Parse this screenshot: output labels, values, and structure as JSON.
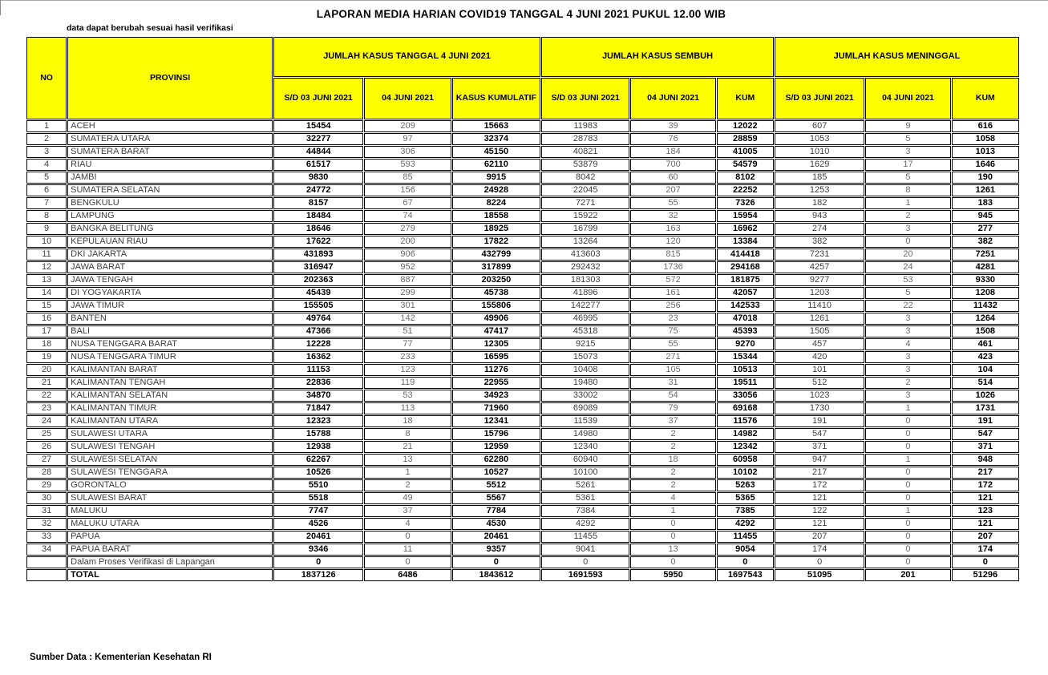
{
  "page": {
    "title": "LAPORAN MEDIA HARIAN COVID19 TANGGAL 4 JUNI 2021 PUKUL 12.00 WIB",
    "note": "data dapat berubah sesuai hasil verifikasi",
    "source": "Sumber Data : Kementerian Kesehatan RI"
  },
  "colors": {
    "header_bg": "#FFFF00",
    "border": "#000000",
    "bold_value": "#000000",
    "muted_value": "#6a6a6a"
  },
  "table": {
    "headers": {
      "no": "NO",
      "provinsi": "PROVINSI",
      "group_kasus": "JUMLAH KASUS TANGGAL 4 JUNI 2021",
      "group_sembuh": "JUMLAH KASUS SEMBUH",
      "group_meninggal": "JUMLAH KASUS MENINGGAL",
      "sub": [
        "S/D 03 JUNI 2021",
        "04 JUNI 2021",
        "KASUS KUMULATIF",
        "S/D 03 JUNI 2021",
        "04 JUNI 2021",
        "KUM",
        "S/D 03 JUNI 2021",
        "04 JUNI 2021",
        "KUM"
      ]
    },
    "rows": [
      [
        "1",
        "ACEH",
        "15454",
        "209",
        "15663",
        "11983",
        "39",
        "12022",
        "607",
        "9",
        "616"
      ],
      [
        "2",
        "SUMATERA UTARA",
        "32277",
        "97",
        "32374",
        "28783",
        "76",
        "28859",
        "1053",
        "5",
        "1058"
      ],
      [
        "3",
        "SUMATERA BARAT",
        "44844",
        "306",
        "45150",
        "40821",
        "184",
        "41005",
        "1010",
        "3",
        "1013"
      ],
      [
        "4",
        "RIAU",
        "61517",
        "593",
        "62110",
        "53879",
        "700",
        "54579",
        "1629",
        "17",
        "1646"
      ],
      [
        "5",
        "JAMBI",
        "9830",
        "85",
        "9915",
        "8042",
        "60",
        "8102",
        "185",
        "5",
        "190"
      ],
      [
        "6",
        "SUMATERA SELATAN",
        "24772",
        "156",
        "24928",
        "22045",
        "207",
        "22252",
        "1253",
        "8",
        "1261"
      ],
      [
        "7",
        "BENGKULU",
        "8157",
        "67",
        "8224",
        "7271",
        "55",
        "7326",
        "182",
        "1",
        "183"
      ],
      [
        "8",
        "LAMPUNG",
        "18484",
        "74",
        "18558",
        "15922",
        "32",
        "15954",
        "943",
        "2",
        "945"
      ],
      [
        "9",
        "BANGKA BELITUNG",
        "18646",
        "279",
        "18925",
        "16799",
        "163",
        "16962",
        "274",
        "3",
        "277"
      ],
      [
        "10",
        "KEPULAUAN RIAU",
        "17622",
        "200",
        "17822",
        "13264",
        "120",
        "13384",
        "382",
        "0",
        "382"
      ],
      [
        "11",
        "DKI JAKARTA",
        "431893",
        "906",
        "432799",
        "413603",
        "815",
        "414418",
        "7231",
        "20",
        "7251"
      ],
      [
        "12",
        "JAWA BARAT",
        "316947",
        "952",
        "317899",
        "292432",
        "1736",
        "294168",
        "4257",
        "24",
        "4281"
      ],
      [
        "13",
        "JAWA TENGAH",
        "202363",
        "887",
        "203250",
        "181303",
        "572",
        "181875",
        "9277",
        "53",
        "9330"
      ],
      [
        "14",
        "DI YOGYAKARTA",
        "45439",
        "299",
        "45738",
        "41896",
        "161",
        "42057",
        "1203",
        "5",
        "1208"
      ],
      [
        "15",
        "JAWA TIMUR",
        "155505",
        "301",
        "155806",
        "142277",
        "256",
        "142533",
        "11410",
        "22",
        "11432"
      ],
      [
        "16",
        "BANTEN",
        "49764",
        "142",
        "49906",
        "46995",
        "23",
        "47018",
        "1261",
        "3",
        "1264"
      ],
      [
        "17",
        "BALI",
        "47366",
        "51",
        "47417",
        "45318",
        "75",
        "45393",
        "1505",
        "3",
        "1508"
      ],
      [
        "18",
        "NUSA TENGGARA BARAT",
        "12228",
        "77",
        "12305",
        "9215",
        "55",
        "9270",
        "457",
        "4",
        "461"
      ],
      [
        "19",
        "NUSA TENGGARA TIMUR",
        "16362",
        "233",
        "16595",
        "15073",
        "271",
        "15344",
        "420",
        "3",
        "423"
      ],
      [
        "20",
        "KALIMANTAN BARAT",
        "11153",
        "123",
        "11276",
        "10408",
        "105",
        "10513",
        "101",
        "3",
        "104"
      ],
      [
        "21",
        "KALIMANTAN TENGAH",
        "22836",
        "119",
        "22955",
        "19480",
        "31",
        "19511",
        "512",
        "2",
        "514"
      ],
      [
        "22",
        "KALIMANTAN SELATAN",
        "34870",
        "53",
        "34923",
        "33002",
        "54",
        "33056",
        "1023",
        "3",
        "1026"
      ],
      [
        "23",
        "KALIMANTAN TIMUR",
        "71847",
        "113",
        "71960",
        "69089",
        "79",
        "69168",
        "1730",
        "1",
        "1731"
      ],
      [
        "24",
        "KALIMANTAN UTARA",
        "12323",
        "18",
        "12341",
        "11539",
        "37",
        "11576",
        "191",
        "0",
        "191"
      ],
      [
        "25",
        "SULAWESI UTARA",
        "15788",
        "8",
        "15796",
        "14980",
        "2",
        "14982",
        "547",
        "0",
        "547"
      ],
      [
        "26",
        "SULAWESI TENGAH",
        "12938",
        "21",
        "12959",
        "12340",
        "2",
        "12342",
        "371",
        "0",
        "371"
      ],
      [
        "27",
        "SULAWESI SELATAN",
        "62267",
        "13",
        "62280",
        "60940",
        "18",
        "60958",
        "947",
        "1",
        "948"
      ],
      [
        "28",
        "SULAWESI TENGGARA",
        "10526",
        "1",
        "10527",
        "10100",
        "2",
        "10102",
        "217",
        "0",
        "217"
      ],
      [
        "29",
        "GORONTALO",
        "5510",
        "2",
        "5512",
        "5261",
        "2",
        "5263",
        "172",
        "0",
        "172"
      ],
      [
        "30",
        "SULAWESI BARAT",
        "5518",
        "49",
        "5567",
        "5361",
        "4",
        "5365",
        "121",
        "0",
        "121"
      ],
      [
        "31",
        "MALUKU",
        "7747",
        "37",
        "7784",
        "7384",
        "1",
        "7385",
        "122",
        "1",
        "123"
      ],
      [
        "32",
        "MALUKU UTARA",
        "4526",
        "4",
        "4530",
        "4292",
        "0",
        "4292",
        "121",
        "0",
        "121"
      ],
      [
        "33",
        "PAPUA",
        "20461",
        "0",
        "20461",
        "11455",
        "0",
        "11455",
        "207",
        "0",
        "207"
      ],
      [
        "34",
        "PAPUA BARAT",
        "9346",
        "11",
        "9357",
        "9041",
        "13",
        "9054",
        "174",
        "0",
        "174"
      ],
      [
        "",
        "Dalam Proses Verifikasi di Lapangan",
        "0",
        "0",
        "0",
        "0",
        "0",
        "0",
        "0",
        "0",
        "0"
      ]
    ],
    "total_row": [
      "",
      "TOTAL",
      "1837126",
      "6486",
      "1843612",
      "1691593",
      "5950",
      "1697543",
      "51095",
      "201",
      "51296"
    ]
  }
}
